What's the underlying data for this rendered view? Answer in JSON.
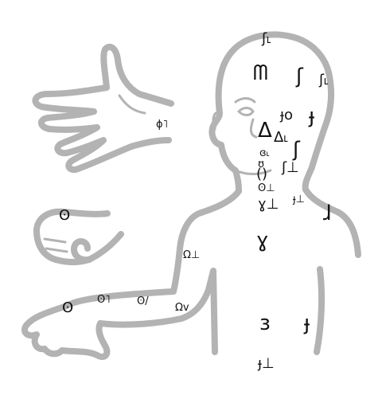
{
  "labels": {
    "crown": "ʃ˪",
    "forehead": "ᗰ",
    "temple_big": "ʃ",
    "temple_small": "ʃ˪",
    "eye": "ɟo",
    "cheek_big": "ɟ",
    "nose": "Δ˪",
    "nose_wide": "Δ",
    "jaw_big": "ʃ",
    "lips_top": "ɞ˪",
    "lips": "ʊ",
    "chin": "ʃ⊥",
    "mouth": "()",
    "throat_top": "ʘ⊥",
    "throat": "ɣ⊥",
    "neck_side": "ɟ⊥",
    "shoulder": "ɺ",
    "chest": "ɣ",
    "palm": "ɸ˥",
    "fist": "ʘ",
    "upper_arm": "Ω⊥",
    "hand": "ʘ",
    "forearm": "ʘ˥",
    "wrist": "ʘ/",
    "elbow": "Ωv",
    "belly_left": "ɜ",
    "belly_right": "ɟ",
    "navel": "ɟ⊥"
  }
}
